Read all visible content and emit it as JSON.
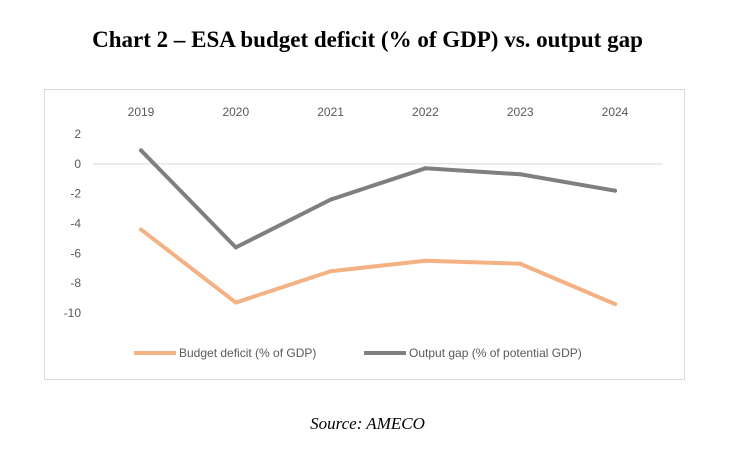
{
  "title": {
    "bold": "Chart 2",
    "rest": " – ESA budget deficit (% of GDP) vs. output gap"
  },
  "source": "Source: AMECO",
  "chart_data": {
    "type": "line",
    "categories": [
      "2019",
      "2020",
      "2021",
      "2022",
      "2023",
      "2024"
    ],
    "ylim": [
      -10,
      2
    ],
    "yticks": [
      2,
      0,
      -2,
      -4,
      -6,
      -8,
      -10
    ],
    "x_axis_position": "top",
    "gridlines": false,
    "legend_position": "bottom",
    "series": [
      {
        "name": "Budget deficit (% of GDP)",
        "color": "#f4b183",
        "values": [
          -4.4,
          -9.3,
          -7.2,
          -6.5,
          -6.7,
          -9.4
        ]
      },
      {
        "name": "Output gap (% of potential GDP)",
        "color": "#7f7f7f",
        "values": [
          0.9,
          -5.6,
          -2.4,
          -0.3,
          -0.7,
          -1.8
        ]
      }
    ]
  }
}
